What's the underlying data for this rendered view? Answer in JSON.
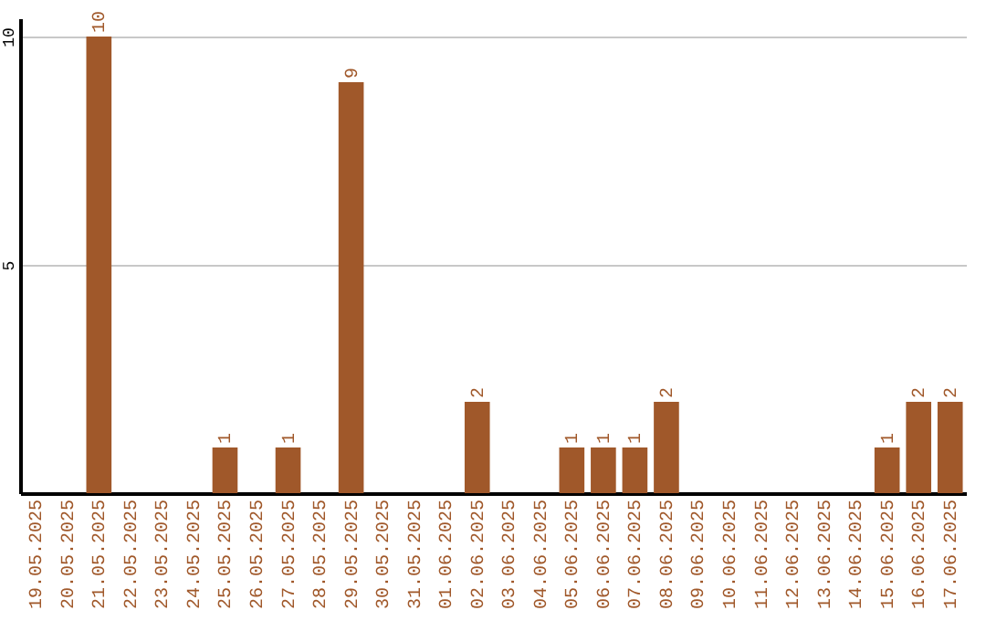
{
  "chart_data": {
    "type": "bar",
    "categories": [
      "19.05.2025",
      "20.05.2025",
      "21.05.2025",
      "22.05.2025",
      "23.05.2025",
      "24.05.2025",
      "25.05.2025",
      "26.05.2025",
      "27.05.2025",
      "28.05.2025",
      "29.05.2025",
      "30.05.2025",
      "31.05.2025",
      "01.06.2025",
      "02.06.2025",
      "03.06.2025",
      "04.06.2025",
      "05.06.2025",
      "06.06.2025",
      "07.06.2025",
      "08.06.2025",
      "09.06.2025",
      "10.06.2025",
      "11.06.2025",
      "12.06.2025",
      "13.06.2025",
      "14.06.2025",
      "15.06.2025",
      "16.06.2025",
      "17.06.2025"
    ],
    "values": [
      0,
      0,
      10,
      0,
      0,
      0,
      1,
      0,
      1,
      0,
      9,
      0,
      0,
      0,
      2,
      0,
      0,
      1,
      1,
      1,
      2,
      0,
      0,
      0,
      0,
      0,
      0,
      1,
      2,
      2
    ],
    "value_labels": [
      null,
      null,
      "10",
      null,
      null,
      null,
      "1",
      null,
      "1",
      null,
      "9",
      null,
      null,
      null,
      "2",
      null,
      null,
      "1",
      "1",
      "1",
      "2",
      null,
      null,
      null,
      null,
      null,
      null,
      "1",
      "2",
      "2"
    ],
    "color": "#a0582a",
    "ylim": [
      0,
      10.4
    ],
    "yticks": [
      {
        "value": 0,
        "label": null
      },
      5,
      10
    ],
    "grid": "y"
  }
}
